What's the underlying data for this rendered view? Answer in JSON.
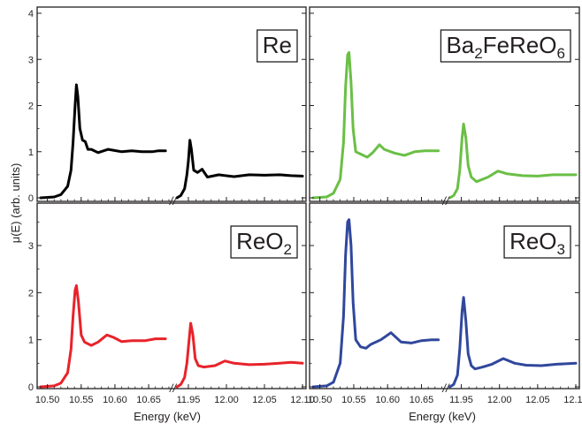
{
  "figure": {
    "ylabel": "μ(E) (arb. units)",
    "xlabel": "Energy (keV)",
    "break_symbol": "//"
  },
  "colors": {
    "Re": "#000000",
    "Ba2FeReO6": "#6abf45",
    "ReO2": "#e8232a",
    "ReO3": "#30479c",
    "axis": "#231f20"
  },
  "chart_data": {
    "type": "line",
    "layout": "2x2 panels with broken x-axis (L3 and L2 edges)",
    "xlabel": "Energy (keV)",
    "ylabel": "μ(E) (arb. units)",
    "x_segments": [
      {
        "range": [
          10.49,
          10.68
        ],
        "ticks": [
          10.5,
          10.55,
          10.6,
          10.65
        ],
        "tick_labels": [
          "10.50",
          "10.55",
          "10.60",
          "10.65"
        ]
      },
      {
        "range": [
          11.935,
          12.1
        ],
        "ticks": [
          11.95,
          12.0,
          12.05,
          12.1
        ],
        "tick_labels": [
          "11.95",
          "12.00",
          "12.05",
          "12.10"
        ]
      }
    ],
    "ylim": [
      0,
      4
    ],
    "yticks": [
      0,
      1,
      2,
      3,
      4
    ],
    "panels": [
      {
        "name": "Re",
        "label": "Re",
        "label_sub": "",
        "color_key": "Re",
        "segment_L3": [
          [
            10.49,
            0.0
          ],
          [
            10.51,
            0.02
          ],
          [
            10.52,
            0.07
          ],
          [
            10.53,
            0.25
          ],
          [
            10.535,
            0.6
          ],
          [
            10.538,
            1.2
          ],
          [
            10.541,
            2.0
          ],
          [
            10.543,
            2.45
          ],
          [
            10.545,
            2.2
          ],
          [
            10.548,
            1.5
          ],
          [
            10.552,
            1.25
          ],
          [
            10.556,
            1.22
          ],
          [
            10.56,
            1.05
          ],
          [
            10.565,
            1.05
          ],
          [
            10.575,
            0.98
          ],
          [
            10.59,
            1.05
          ],
          [
            10.61,
            1.0
          ],
          [
            10.625,
            1.02
          ],
          [
            10.64,
            1.0
          ],
          [
            10.655,
            1.0
          ],
          [
            10.665,
            1.02
          ],
          [
            10.675,
            1.02
          ]
        ],
        "segment_L2": [
          [
            11.935,
            0.0
          ],
          [
            11.94,
            0.05
          ],
          [
            11.945,
            0.2
          ],
          [
            11.948,
            0.5
          ],
          [
            11.95,
            0.8
          ],
          [
            11.952,
            1.25
          ],
          [
            11.954,
            1.05
          ],
          [
            11.957,
            0.6
          ],
          [
            11.962,
            0.55
          ],
          [
            11.968,
            0.62
          ],
          [
            11.975,
            0.45
          ],
          [
            11.99,
            0.5
          ],
          [
            12.01,
            0.46
          ],
          [
            12.03,
            0.5
          ],
          [
            12.05,
            0.49
          ],
          [
            12.07,
            0.5
          ],
          [
            12.085,
            0.48
          ],
          [
            12.1,
            0.47
          ]
        ]
      },
      {
        "name": "Ba2FeReO6",
        "label": "Ba",
        "label_sub": "2",
        "label_mid": "FeReO",
        "label_sub2": "6",
        "color_key": "Ba2FeReO6",
        "segment_L3": [
          [
            10.49,
            0.0
          ],
          [
            10.51,
            0.02
          ],
          [
            10.52,
            0.1
          ],
          [
            10.53,
            0.4
          ],
          [
            10.535,
            1.2
          ],
          [
            10.538,
            2.4
          ],
          [
            10.541,
            3.1
          ],
          [
            10.543,
            3.15
          ],
          [
            10.546,
            2.5
          ],
          [
            10.549,
            1.5
          ],
          [
            10.553,
            1.0
          ],
          [
            10.56,
            0.95
          ],
          [
            10.57,
            0.88
          ],
          [
            10.578,
            0.98
          ],
          [
            10.588,
            1.15
          ],
          [
            10.595,
            1.05
          ],
          [
            10.61,
            0.97
          ],
          [
            10.625,
            0.92
          ],
          [
            10.64,
            1.0
          ],
          [
            10.655,
            1.02
          ],
          [
            10.67,
            1.02
          ],
          [
            10.675,
            1.02
          ]
        ],
        "segment_L2": [
          [
            11.935,
            0.0
          ],
          [
            11.94,
            0.05
          ],
          [
            11.945,
            0.2
          ],
          [
            11.948,
            0.6
          ],
          [
            11.951,
            1.3
          ],
          [
            11.953,
            1.6
          ],
          [
            11.956,
            1.3
          ],
          [
            11.959,
            0.7
          ],
          [
            11.963,
            0.45
          ],
          [
            11.97,
            0.35
          ],
          [
            11.985,
            0.45
          ],
          [
            11.998,
            0.58
          ],
          [
            12.01,
            0.52
          ],
          [
            12.03,
            0.48
          ],
          [
            12.05,
            0.47
          ],
          [
            12.07,
            0.5
          ],
          [
            12.085,
            0.5
          ],
          [
            12.1,
            0.5
          ]
        ]
      },
      {
        "name": "ReO2",
        "label": "ReO",
        "label_sub": "2",
        "color_key": "ReO2",
        "segment_L3": [
          [
            10.49,
            0.0
          ],
          [
            10.51,
            0.02
          ],
          [
            10.52,
            0.08
          ],
          [
            10.53,
            0.3
          ],
          [
            10.535,
            0.8
          ],
          [
            10.538,
            1.5
          ],
          [
            10.541,
            2.05
          ],
          [
            10.543,
            2.15
          ],
          [
            10.546,
            1.8
          ],
          [
            10.55,
            1.1
          ],
          [
            10.555,
            0.95
          ],
          [
            10.565,
            0.88
          ],
          [
            10.575,
            0.95
          ],
          [
            10.588,
            1.1
          ],
          [
            10.598,
            1.05
          ],
          [
            10.61,
            0.96
          ],
          [
            10.625,
            0.98
          ],
          [
            10.645,
            0.98
          ],
          [
            10.66,
            1.02
          ],
          [
            10.675,
            1.02
          ]
        ],
        "segment_L2": [
          [
            11.935,
            0.0
          ],
          [
            11.94,
            0.05
          ],
          [
            11.945,
            0.2
          ],
          [
            11.948,
            0.5
          ],
          [
            11.951,
            1.0
          ],
          [
            11.953,
            1.35
          ],
          [
            11.956,
            1.1
          ],
          [
            11.959,
            0.6
          ],
          [
            11.963,
            0.45
          ],
          [
            11.97,
            0.42
          ],
          [
            11.985,
            0.45
          ],
          [
            11.998,
            0.55
          ],
          [
            12.01,
            0.5
          ],
          [
            12.03,
            0.47
          ],
          [
            12.05,
            0.48
          ],
          [
            12.07,
            0.5
          ],
          [
            12.085,
            0.52
          ],
          [
            12.1,
            0.5
          ]
        ]
      },
      {
        "name": "ReO3",
        "label": "ReO",
        "label_sub": "3",
        "color_key": "ReO3",
        "segment_L3": [
          [
            10.49,
            0.0
          ],
          [
            10.51,
            0.02
          ],
          [
            10.52,
            0.1
          ],
          [
            10.53,
            0.5
          ],
          [
            10.535,
            1.5
          ],
          [
            10.538,
            2.8
          ],
          [
            10.541,
            3.5
          ],
          [
            10.543,
            3.55
          ],
          [
            10.546,
            3.0
          ],
          [
            10.549,
            1.8
          ],
          [
            10.553,
            1.0
          ],
          [
            10.56,
            0.85
          ],
          [
            10.568,
            0.82
          ],
          [
            10.575,
            0.9
          ],
          [
            10.59,
            1.0
          ],
          [
            10.605,
            1.15
          ],
          [
            10.62,
            0.95
          ],
          [
            10.635,
            0.93
          ],
          [
            10.65,
            0.98
          ],
          [
            10.665,
            1.0
          ],
          [
            10.675,
            1.0
          ]
        ],
        "segment_L2": [
          [
            11.935,
            0.0
          ],
          [
            11.94,
            0.05
          ],
          [
            11.945,
            0.25
          ],
          [
            11.948,
            0.8
          ],
          [
            11.951,
            1.6
          ],
          [
            11.953,
            1.9
          ],
          [
            11.956,
            1.4
          ],
          [
            11.959,
            0.7
          ],
          [
            11.963,
            0.45
          ],
          [
            11.968,
            0.38
          ],
          [
            11.978,
            0.42
          ],
          [
            11.99,
            0.48
          ],
          [
            12.005,
            0.6
          ],
          [
            12.02,
            0.5
          ],
          [
            12.035,
            0.46
          ],
          [
            12.055,
            0.45
          ],
          [
            12.075,
            0.48
          ],
          [
            12.1,
            0.5
          ]
        ]
      }
    ]
  }
}
